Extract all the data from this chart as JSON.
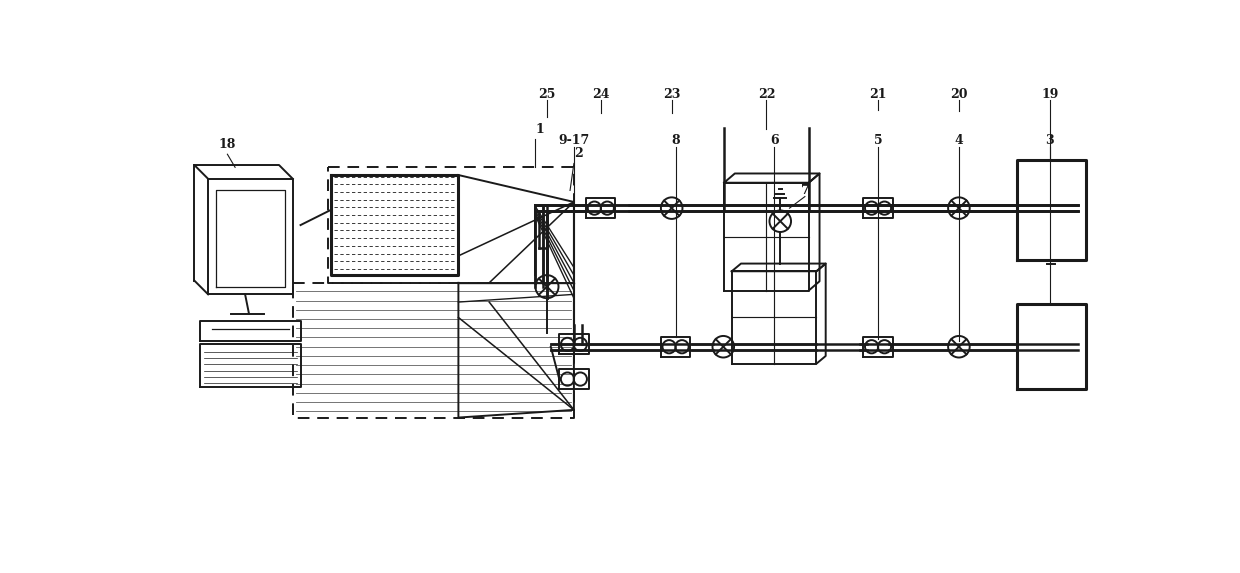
{
  "bg_color": "#ffffff",
  "line_color": "#1a1a1a",
  "figsize": [
    12.4,
    5.73
  ],
  "dpi": 100,
  "lw_main": 1.4,
  "lw_thick": 2.2,
  "lw_thin": 0.9,
  "lw_pipe": 1.8
}
